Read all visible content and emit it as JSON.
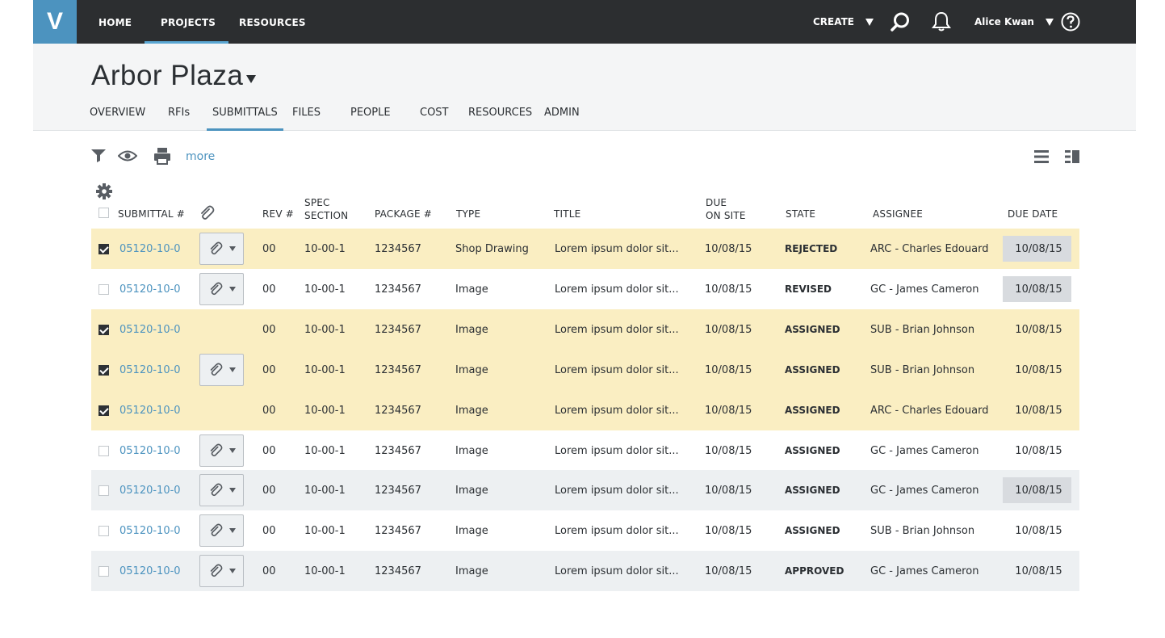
{
  "app": {
    "logo_letter": "V",
    "brand_color": "#4c93bf"
  },
  "topnav": {
    "items": [
      {
        "label": "HOME"
      },
      {
        "label": "PROJECTS",
        "active": true
      },
      {
        "label": "RESOURCES"
      }
    ],
    "create_label": "CREATE",
    "user_name": "Alice Kwan",
    "icons": [
      "search-icon",
      "bell-icon",
      "help-icon"
    ]
  },
  "project": {
    "title": "Arbor Plaza",
    "tabs": [
      {
        "label": "OVERVIEW"
      },
      {
        "label": "RFIs"
      },
      {
        "label": "SUBMITTALS",
        "active": true
      },
      {
        "label": "FILES"
      },
      {
        "label": "PEOPLE"
      },
      {
        "label": "COST"
      },
      {
        "label": "RESOURCES"
      },
      {
        "label": "ADMIN"
      }
    ]
  },
  "toolbar": {
    "more_label": "more",
    "icons": [
      "filter-icon",
      "eye-icon",
      "print-icon",
      "list-view-icon",
      "split-view-icon",
      "settings-icon"
    ]
  },
  "table": {
    "headers": {
      "submittal": "SUBMITTAL #",
      "rev": "REV #",
      "spec_1": "SPEC",
      "spec_2": "SECTION",
      "package": "PACKAGE #",
      "type": "TYPE",
      "title": "TITLE",
      "due_on_site_1": "DUE",
      "due_on_site_2": "ON SITE",
      "state": "STATE",
      "assignee": "ASSIGNEE",
      "due_date": "DUE DATE"
    },
    "status_colors": {
      "selected_row": "#faeec2",
      "alt_row": "#edf0f2",
      "flag_orange": "#f0a13c",
      "flag_yellow": "#f3c81d"
    },
    "rows": [
      {
        "checked": true,
        "bg": "selected",
        "submittal": "05120-10-0",
        "attachment": true,
        "rev": "00",
        "spec": "10-00-1",
        "package": "1234567",
        "type": "Shop Drawing",
        "title": "Lorem ipsum dolor sit...",
        "due_on_site": "10/08/15",
        "state": "REJECTED",
        "assignee": "ARC - Charles Edouard",
        "due_date": "10/08/15",
        "flag": "orange"
      },
      {
        "checked": false,
        "bg": "white",
        "submittal": "05120-10-0",
        "attachment": true,
        "rev": "00",
        "spec": "10-00-1",
        "package": "1234567",
        "type": "Image",
        "title": "Lorem ipsum dolor sit...",
        "due_on_site": "10/08/15",
        "state": "REVISED",
        "assignee": "GC - James Cameron",
        "due_date": "10/08/15",
        "flag": "yellow"
      },
      {
        "checked": true,
        "bg": "selected",
        "submittal": "05120-10-0",
        "attachment": false,
        "rev": "00",
        "spec": "10-00-1",
        "package": "1234567",
        "type": "Image",
        "title": "Lorem ipsum dolor sit...",
        "due_on_site": "10/08/15",
        "state": "ASSIGNED",
        "assignee": "SUB - Brian Johnson",
        "due_date": "10/08/15",
        "flag": ""
      },
      {
        "checked": true,
        "bg": "selected",
        "submittal": "05120-10-0",
        "attachment": true,
        "rev": "00",
        "spec": "10-00-1",
        "package": "1234567",
        "type": "Image",
        "title": "Lorem ipsum dolor sit...",
        "due_on_site": "10/08/15",
        "state": "ASSIGNED",
        "assignee": "SUB - Brian Johnson",
        "due_date": "10/08/15",
        "flag": ""
      },
      {
        "checked": true,
        "bg": "selected",
        "submittal": "05120-10-0",
        "attachment": false,
        "rev": "00",
        "spec": "10-00-1",
        "package": "1234567",
        "type": "Image",
        "title": "Lorem ipsum dolor sit...",
        "due_on_site": "10/08/15",
        "state": "ASSIGNED",
        "assignee": "ARC - Charles Edouard",
        "due_date": "10/08/15",
        "flag": ""
      },
      {
        "checked": false,
        "bg": "white",
        "submittal": "05120-10-0",
        "attachment": true,
        "rev": "00",
        "spec": "10-00-1",
        "package": "1234567",
        "type": "Image",
        "title": "Lorem ipsum dolor sit...",
        "due_on_site": "10/08/15",
        "state": "ASSIGNED",
        "assignee": "GC - James Cameron",
        "due_date": "10/08/15",
        "flag": ""
      },
      {
        "checked": false,
        "bg": "alt",
        "submittal": "05120-10-0",
        "attachment": true,
        "rev": "00",
        "spec": "10-00-1",
        "package": "1234567",
        "type": "Image",
        "title": "Lorem ipsum dolor sit...",
        "due_on_site": "10/08/15",
        "state": "ASSIGNED",
        "assignee": "GC - James Cameron",
        "due_date": "10/08/15",
        "flag": "yellow"
      },
      {
        "checked": false,
        "bg": "white",
        "submittal": "05120-10-0",
        "attachment": true,
        "rev": "00",
        "spec": "10-00-1",
        "package": "1234567",
        "type": "Image",
        "title": "Lorem ipsum dolor sit...",
        "due_on_site": "10/08/15",
        "state": "ASSIGNED",
        "assignee": "SUB - Brian Johnson",
        "due_date": "10/08/15",
        "flag": ""
      },
      {
        "checked": false,
        "bg": "alt",
        "submittal": "05120-10-0",
        "attachment": true,
        "rev": "00",
        "spec": "10-00-1",
        "package": "1234567",
        "type": "Image",
        "title": "Lorem ipsum dolor sit...",
        "due_on_site": "10/08/15",
        "state": "APPROVED",
        "assignee": "GC - James Cameron",
        "due_date": "10/08/15",
        "flag": ""
      }
    ]
  }
}
